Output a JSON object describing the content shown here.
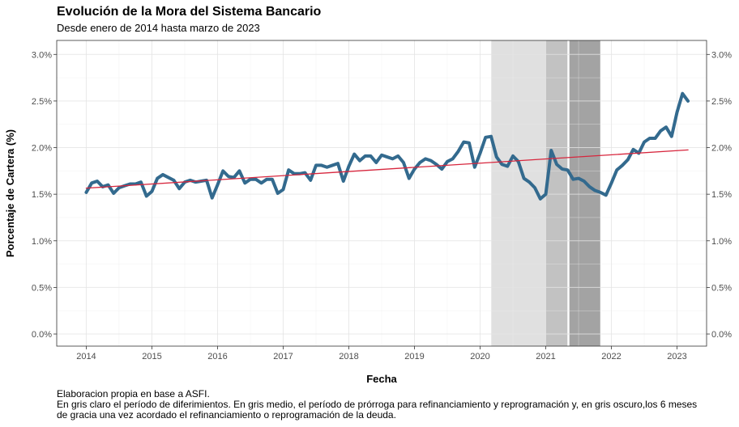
{
  "chart_data": {
    "type": "line",
    "title": "Evolución de la Mora del Sistema Bancario",
    "subtitle": "Desde enero de 2014 hasta marzo de 2023",
    "xlabel": "Fecha",
    "ylabel": "Porcentaje de Cartera (%)",
    "ylim": [
      0,
      3.0
    ],
    "xlim": [
      2013.55,
      2023.45
    ],
    "yticks": [
      0,
      0.5,
      1.0,
      1.5,
      2.0,
      2.5,
      3.0
    ],
    "ytick_labels": [
      "0.0%",
      "0.5%",
      "1.0%",
      "1.5%",
      "2.0%",
      "2.5%",
      "3.0%"
    ],
    "xticks": [
      2014,
      2015,
      2016,
      2017,
      2018,
      2019,
      2020,
      2021,
      2022,
      2023
    ],
    "xtick_labels": [
      "2014",
      "2015",
      "2016",
      "2017",
      "2018",
      "2019",
      "2020",
      "2021",
      "2022",
      "2023"
    ],
    "grid": true,
    "secondary_y_axis": true,
    "shaded_periods": [
      {
        "start": 2020.17,
        "end": 2021.0,
        "color": "#e0e0e0"
      },
      {
        "start": 2021.0,
        "end": 2021.33,
        "color": "#c2c2c2"
      },
      {
        "start": 2021.36,
        "end": 2021.83,
        "color": "#a3a3a3"
      }
    ],
    "series": [
      {
        "color": "#336a8e",
        "x": [
          2014.0,
          2014.083,
          2014.167,
          2014.25,
          2014.333,
          2014.417,
          2014.5,
          2014.583,
          2014.667,
          2014.75,
          2014.833,
          2014.917,
          2015.0,
          2015.083,
          2015.167,
          2015.25,
          2015.333,
          2015.417,
          2015.5,
          2015.583,
          2015.667,
          2015.75,
          2015.833,
          2015.917,
          2016.0,
          2016.083,
          2016.167,
          2016.25,
          2016.333,
          2016.417,
          2016.5,
          2016.583,
          2016.667,
          2016.75,
          2016.833,
          2016.917,
          2017.0,
          2017.083,
          2017.167,
          2017.25,
          2017.333,
          2017.417,
          2017.5,
          2017.583,
          2017.667,
          2017.75,
          2017.833,
          2017.917,
          2018.0,
          2018.083,
          2018.167,
          2018.25,
          2018.333,
          2018.417,
          2018.5,
          2018.583,
          2018.667,
          2018.75,
          2018.833,
          2018.917,
          2019.0,
          2019.083,
          2019.167,
          2019.25,
          2019.333,
          2019.417,
          2019.5,
          2019.583,
          2019.667,
          2019.75,
          2019.833,
          2019.917,
          2020.0,
          2020.083,
          2020.167,
          2020.25,
          2020.333,
          2020.417,
          2020.5,
          2020.583,
          2020.667,
          2020.75,
          2020.833,
          2020.917,
          2021.0,
          2021.083,
          2021.167,
          2021.25,
          2021.333,
          2021.417,
          2021.5,
          2021.583,
          2021.667,
          2021.75,
          2021.833,
          2021.917,
          2022.0,
          2022.083,
          2022.167,
          2022.25,
          2022.333,
          2022.417,
          2022.5,
          2022.583,
          2022.667,
          2022.75,
          2022.833,
          2022.917,
          2023.0,
          2023.083,
          2023.167
        ],
        "values": [
          1.52,
          1.62,
          1.64,
          1.58,
          1.6,
          1.51,
          1.57,
          1.59,
          1.61,
          1.61,
          1.63,
          1.48,
          1.53,
          1.67,
          1.71,
          1.68,
          1.65,
          1.56,
          1.63,
          1.65,
          1.63,
          1.64,
          1.65,
          1.46,
          1.6,
          1.75,
          1.69,
          1.68,
          1.75,
          1.62,
          1.66,
          1.66,
          1.62,
          1.66,
          1.66,
          1.51,
          1.55,
          1.76,
          1.72,
          1.72,
          1.73,
          1.65,
          1.81,
          1.81,
          1.79,
          1.81,
          1.83,
          1.64,
          1.8,
          1.93,
          1.86,
          1.91,
          1.91,
          1.84,
          1.92,
          1.9,
          1.88,
          1.91,
          1.84,
          1.67,
          1.77,
          1.84,
          1.88,
          1.86,
          1.82,
          1.77,
          1.85,
          1.88,
          1.96,
          2.06,
          2.05,
          1.79,
          1.94,
          2.11,
          2.12,
          1.9,
          1.82,
          1.8,
          1.91,
          1.85,
          1.67,
          1.63,
          1.57,
          1.45,
          1.5,
          1.97,
          1.82,
          1.77,
          1.76,
          1.66,
          1.67,
          1.64,
          1.58,
          1.54,
          1.52,
          1.49,
          1.62,
          1.76,
          1.81,
          1.87,
          1.98,
          1.94,
          2.06,
          2.1,
          2.1,
          2.18,
          2.22,
          2.12,
          2.38,
          2.58,
          2.5
        ]
      },
      {
        "color": "#d7263d",
        "x": [
          2014.0,
          2023.167
        ],
        "values": [
          1.565,
          1.975
        ]
      }
    ]
  },
  "caption": {
    "line1": "Elaboracion propia en base a ASFI.",
    "line2": "En gris claro el período de diferimientos. En gris medio, el período de prórroga para refinanciamiento y reprogramación y, en gris oscuro,los 6 meses",
    "line3": "de gracia una vez acordado el refinanciamiento o reprogramación de la deuda."
  }
}
